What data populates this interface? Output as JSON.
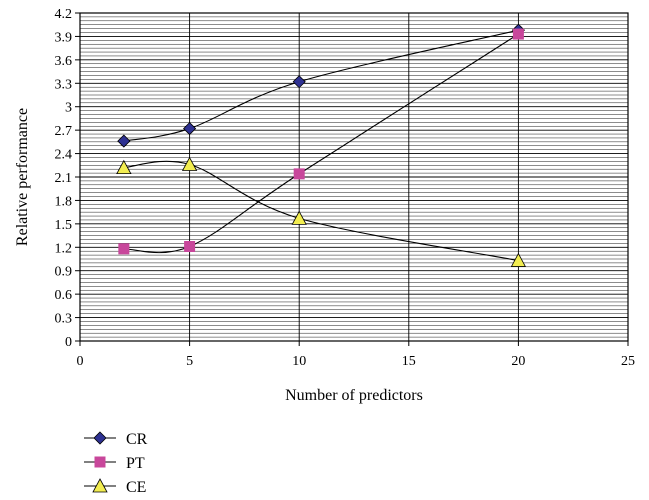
{
  "chart_data": {
    "type": "line",
    "xlabel": "Number of predictors",
    "ylabel": "Relative performance",
    "xlim": [
      0,
      25
    ],
    "ylim": [
      0,
      4.2
    ],
    "x_ticks": [
      "0",
      "5",
      "10",
      "15",
      "20",
      "25"
    ],
    "y_ticks": [
      "0",
      "0.3",
      "0.6",
      "0.9",
      "1.2",
      "1.5",
      "1.8",
      "2.1",
      "2.4",
      "2.7",
      "3",
      "3.3",
      "3.6",
      "3.9",
      "4.2"
    ],
    "grid": true,
    "legend_position": "bottom-left",
    "x": [
      2,
      5,
      10,
      20
    ],
    "series": [
      {
        "name": "CR",
        "values": [
          2.56,
          2.72,
          3.32,
          3.98
        ],
        "marker": "diamond",
        "color": "#2e3192"
      },
      {
        "name": "PT",
        "values": [
          1.18,
          1.21,
          2.14,
          3.93
        ],
        "marker": "square",
        "color": "#c8479b"
      },
      {
        "name": "CE",
        "values": [
          2.22,
          2.26,
          1.57,
          1.03
        ],
        "marker": "triangle",
        "color": "#f2ed50"
      }
    ]
  }
}
